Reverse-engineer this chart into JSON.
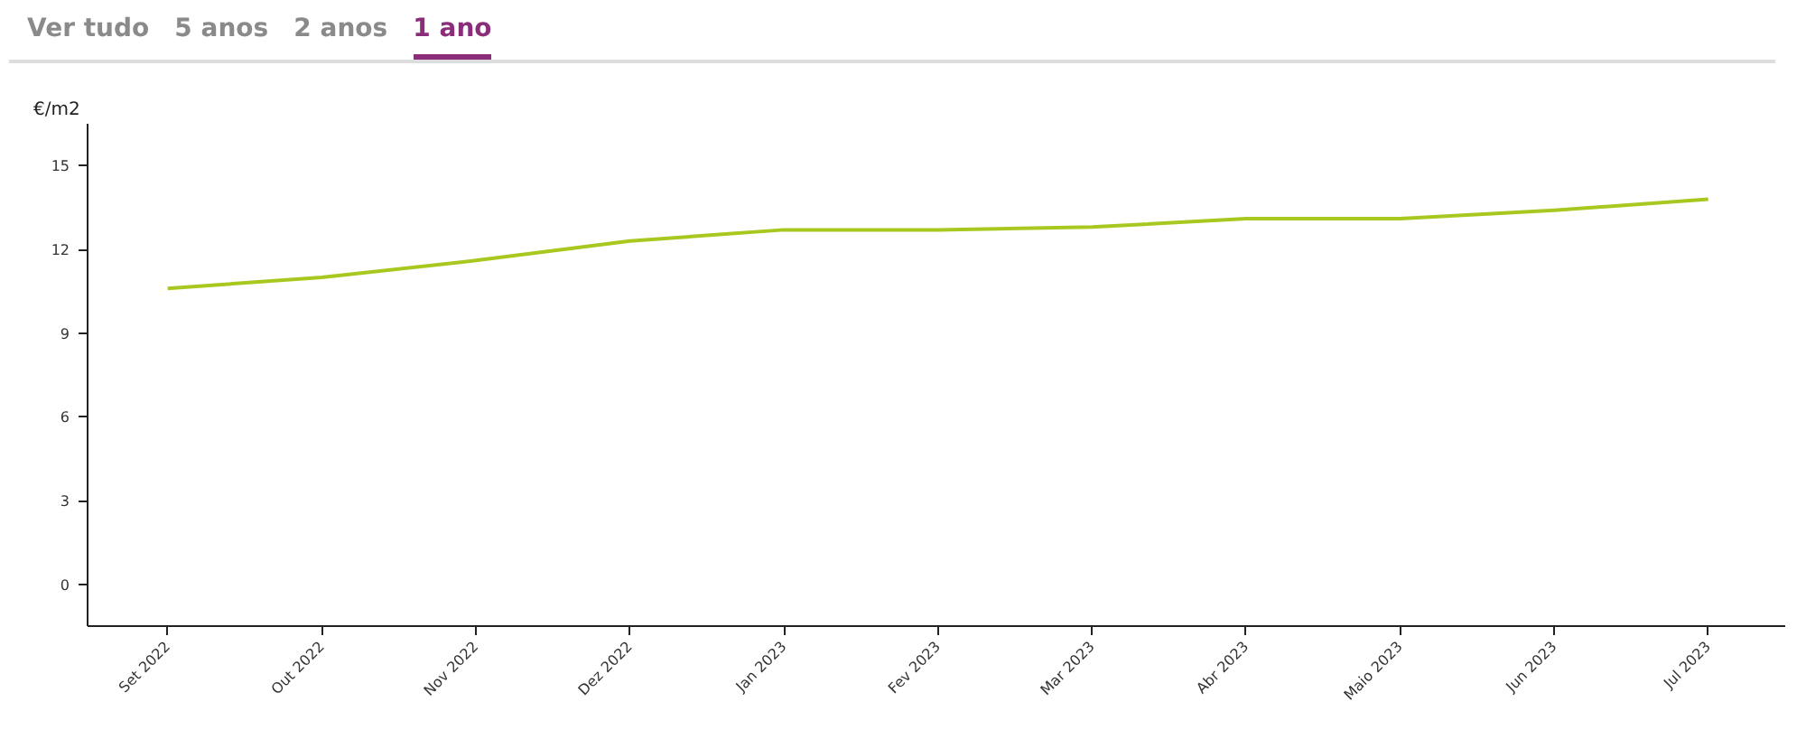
{
  "chart_data": {
    "type": "line",
    "ylabel": "€/m2",
    "annotations": [
      "Ver tudo",
      "5 anos",
      "2 anos",
      "1 ano"
    ],
    "categories": [
      "Set 2022",
      "Out 2022",
      "Nov 2022",
      "Dez 2022",
      "Jan 2023",
      "Fev 2023",
      "Mar 2023",
      "Abr 2023",
      "Maio 2023",
      "Jun 2023",
      "Jul 2023"
    ],
    "series": [
      {
        "color": "#a8c820",
        "values": [
          10.6,
          11.0,
          11.6,
          12.3,
          12.7,
          12.7,
          12.8,
          13.1,
          13.1,
          13.4,
          13.8
        ]
      }
    ],
    "ylim": [
      -1.5,
      16.5
    ],
    "yticks": [
      0,
      3,
      6,
      9,
      12,
      15
    ],
    "grid": false,
    "marker": "none",
    "line_style": "solid"
  }
}
